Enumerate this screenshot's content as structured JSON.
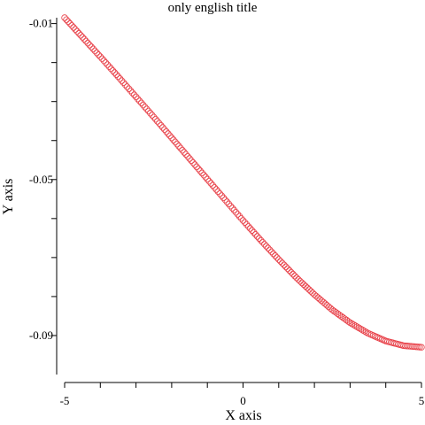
{
  "chart_data": {
    "type": "scatter",
    "title": "only english title",
    "xlabel": "X axis",
    "ylabel": "Y axis",
    "xlim": [
      -5,
      5
    ],
    "ylim": [
      -0.1,
      -0.0085
    ],
    "x_ticks": [
      -5,
      -4,
      -3,
      -2,
      -1,
      0,
      1,
      2,
      3,
      4,
      5
    ],
    "x_tick_labels": [
      "-5",
      "",
      "",
      "",
      "",
      "0",
      "",
      "",
      "",
      "",
      "5"
    ],
    "y_ticks": [
      -0.09,
      -0.08,
      -0.07,
      -0.06,
      -0.05,
      -0.04,
      -0.03,
      -0.02,
      -0.01
    ],
    "y_tick_labels": [
      "-0.09",
      "",
      "",
      "",
      "-0.05",
      "",
      "",
      "",
      "-0.01"
    ],
    "grid": false,
    "marker": "open-circle",
    "series": [
      {
        "color": "#e8424a",
        "x": [
          -5,
          -4.5,
          -4,
          -3.5,
          -3,
          -2.5,
          -2,
          -1.5,
          -1,
          -0.5,
          0,
          0.5,
          1,
          1.5,
          2,
          2.5,
          3,
          3.5,
          4,
          4.5,
          5
        ],
        "y": [
          -0.0085,
          -0.0135,
          -0.0185,
          -0.0236,
          -0.0288,
          -0.034,
          -0.0393,
          -0.0446,
          -0.0499,
          -0.0552,
          -0.0605,
          -0.0656,
          -0.0705,
          -0.0752,
          -0.0795,
          -0.0834,
          -0.0867,
          -0.0894,
          -0.0914,
          -0.0926,
          -0.093
        ]
      }
    ]
  }
}
